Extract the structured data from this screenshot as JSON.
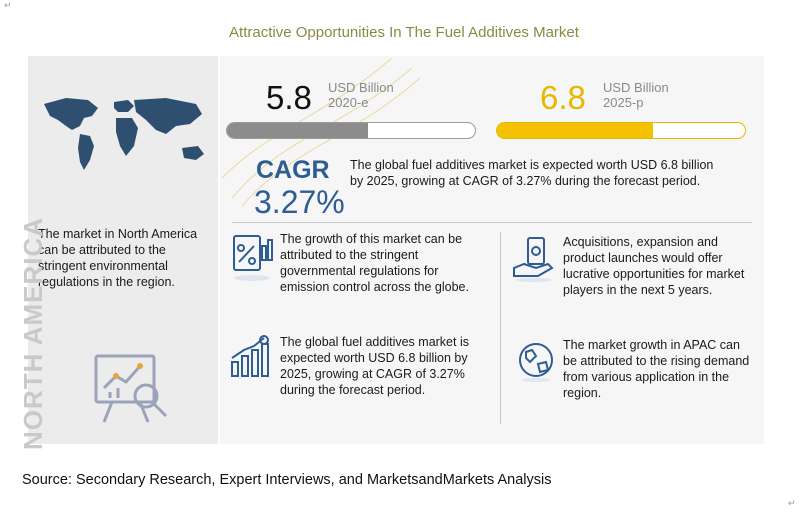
{
  "title": "Attractive Opportunities In The Fuel Additives Market",
  "kpis": {
    "current": {
      "value": "5.8",
      "unit": "USD Billion",
      "period": "2020-e",
      "fill_fraction": 0.57
    },
    "forecast": {
      "value": "6.8",
      "unit": "USD Billion",
      "period": "2025-p",
      "fill_fraction": 0.63
    }
  },
  "cagr": {
    "label": "CAGR",
    "value": "3.27%",
    "description": "The global fuel additives market is expected worth USD 6.8 billion by 2025, growing at CAGR of 3.27% during the forecast period."
  },
  "left_panel": {
    "text": "The market in North America can be attributed to the stringent environmental regulations in the region.",
    "region_label": "NORTH AMERICA"
  },
  "insights": [
    {
      "icon": "regulation-chart-icon",
      "text": "The growth of this market can be attributed to the stringent governmental regulations for emission control across the globe."
    },
    {
      "icon": "money-hand-icon",
      "text": "Acquisitions, expansion and product launches would offer lucrative opportunities for market players in the next 5 years."
    },
    {
      "icon": "growth-bar-chart-icon",
      "text": "The global fuel additives market is expected worth USD 6.8 billion by 2025, growing at CAGR of 3.27% during the forecast period."
    },
    {
      "icon": "globe-icon",
      "text": "The market growth in APAC can be attributed to the rising demand from various application in the region."
    }
  ],
  "source": "Source: Secondary Research, Expert Interviews, and MarketsandMarkets Analysis",
  "colors": {
    "gray_fill": "#8c8c8c",
    "gold_fill": "#f2c200",
    "cagr_blue": "#2e5d93",
    "title_olive": "#8a8a45"
  }
}
